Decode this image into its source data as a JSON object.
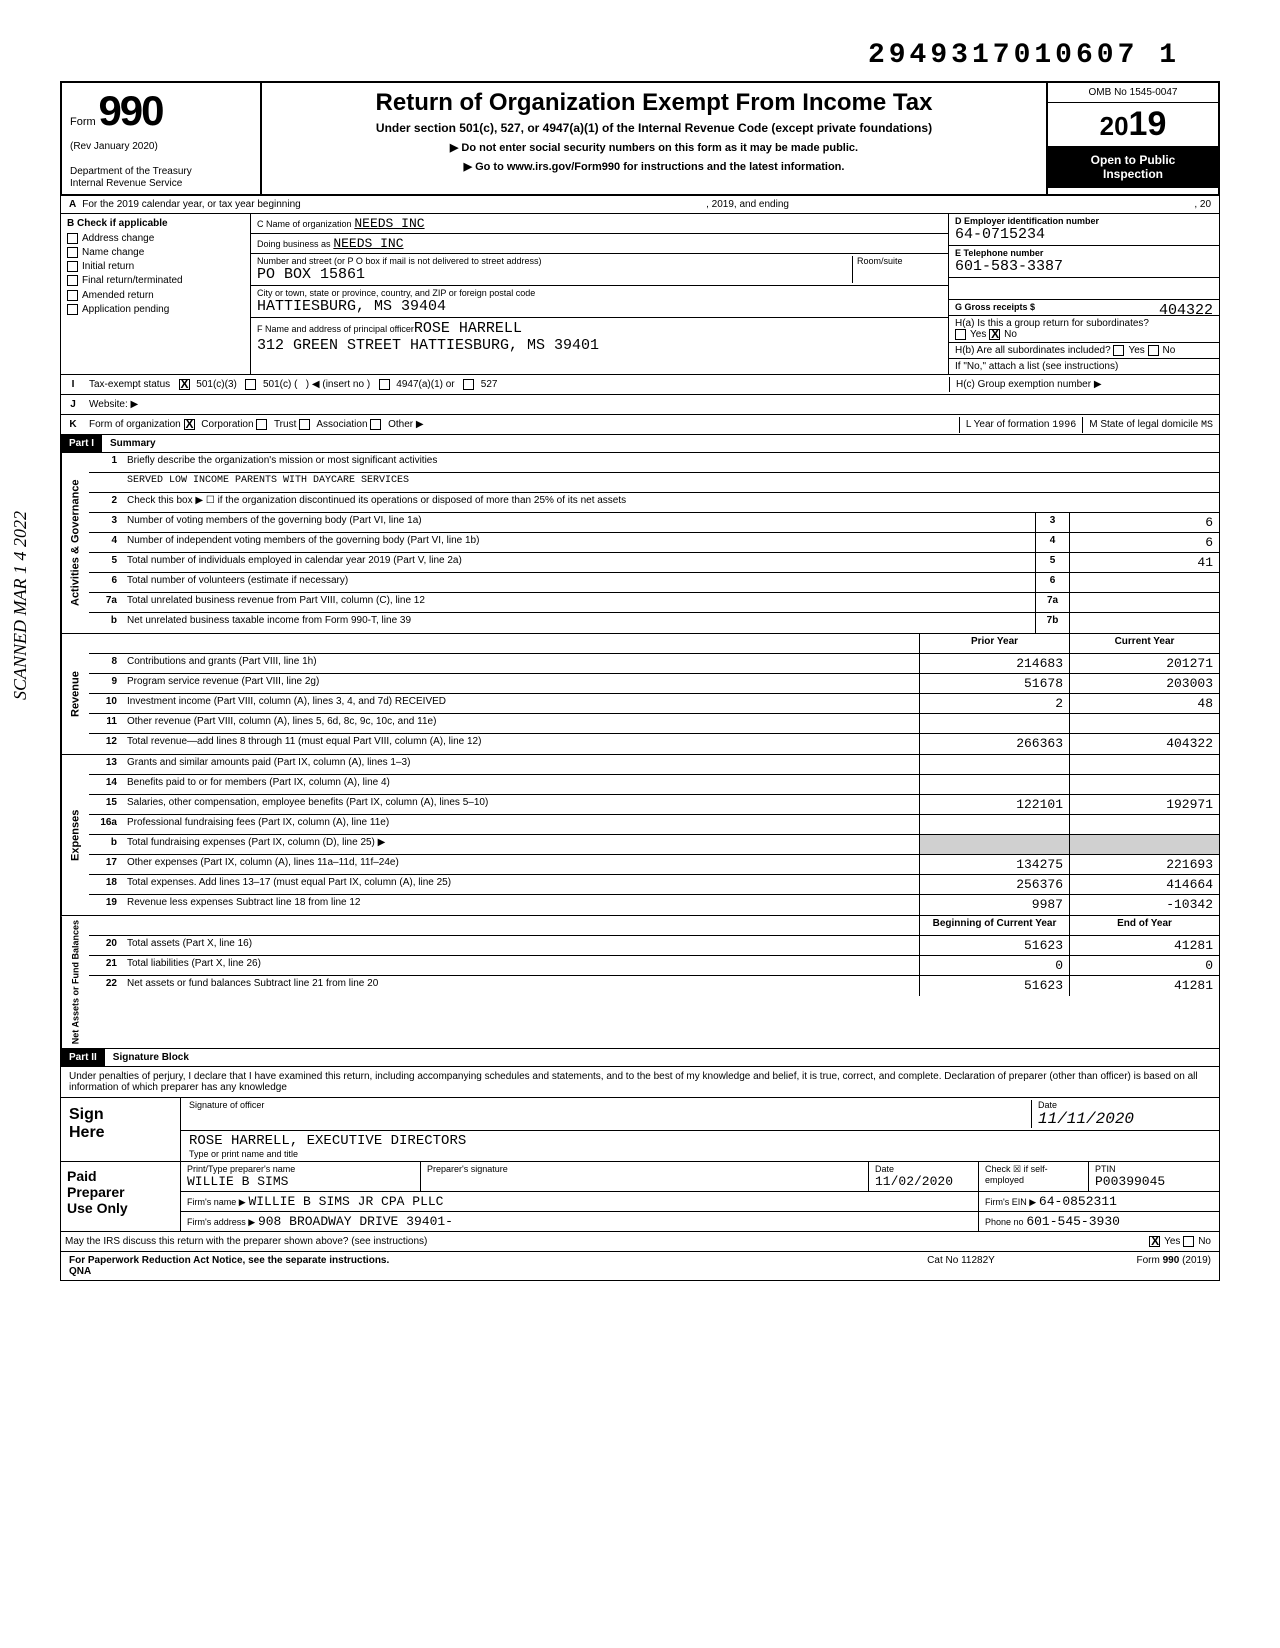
{
  "dln": "2949317010607 1",
  "scanned_stamp": "SCANNED MAR 1 4 2022",
  "form": {
    "number": "990",
    "rev": "(Rev January 2020)",
    "dept": "Department of the Treasury\nInternal Revenue Service",
    "title": "Return of Organization Exempt From Income Tax",
    "subtitle": "Under section 501(c), 527, or 4947(a)(1) of the Internal Revenue Code (except private foundations)",
    "sub2a": "▶ Do not enter social security numbers on this form as it may be made public.",
    "sub2b": "▶ Go to www.irs.gov/Form990 for instructions and the latest information.",
    "omb": "OMB No 1545-0047",
    "year_prefix": "20",
    "year_big": "19",
    "open": "Open to Public Inspection"
  },
  "rowA": {
    "label": "A",
    "text": "For the 2019 calendar year, or tax year beginning",
    "mid": ", 2019, and ending",
    "end": ", 20"
  },
  "B": {
    "header": "B  Check if applicable",
    "items": [
      "Address change",
      "Name change",
      "Initial return",
      "Final return/terminated",
      "Amended return",
      "Application pending"
    ]
  },
  "C": {
    "name_lbl": "C Name of organization",
    "name": "NEEDS INC",
    "dba_lbl": "Doing business as",
    "dba": "NEEDS INC",
    "addr_lbl": "Number and street (or P O box if mail is not delivered to street address)",
    "room_lbl": "Room/suite",
    "addr": "PO BOX 15861",
    "city_lbl": "City or town, state or province, country, and ZIP or foreign postal code",
    "city": "HATTIESBURG, MS 39404",
    "F_lbl": "F Name and address of principal officer",
    "F_name": "ROSE HARRELL",
    "F_addr": "312 GREEN STREET HATTIESBURG, MS 39401"
  },
  "D": {
    "lbl": "D Employer identification number",
    "val": "64-0715234"
  },
  "E": {
    "lbl": "E Telephone number",
    "val": "601-583-3387"
  },
  "G": {
    "lbl": "G Gross receipts $",
    "val": "404322"
  },
  "H": {
    "a": "H(a) Is this a group return for subordinates?",
    "a_yes": "Yes",
    "a_no": "No",
    "b": "H(b) Are all subordinates included?",
    "b_note": "If \"No,\" attach a list (see instructions)",
    "c": "H(c) Group exemption number ▶"
  },
  "I": {
    "lbl": "Tax-exempt status",
    "opt1": "501(c)(3)",
    "opt2": "501(c) (",
    "opt2b": ") ◀ (insert no )",
    "opt3": "4947(a)(1) or",
    "opt4": "527"
  },
  "J": {
    "lbl": "Website: ▶"
  },
  "K": {
    "lbl": "Form of organization",
    "opts": [
      "Corporation",
      "Trust",
      "Association",
      "Other ▶"
    ],
    "L": "L Year of formation",
    "Lval": "1996",
    "M": "M State of legal domicile",
    "Mval": "MS"
  },
  "partI": {
    "hdr": "Part I",
    "title": "Summary"
  },
  "gov": {
    "side": "Activities & Governance",
    "lines": [
      {
        "n": "1",
        "d": "Briefly describe the organization's mission or most significant activities"
      },
      {
        "n": "",
        "d": "SERVED LOW INCOME PARENTS WITH DAYCARE SERVICES",
        "mono": true
      },
      {
        "n": "2",
        "d": "Check this box ▶ ☐ if the organization discontinued its operations or disposed of more than 25% of its net assets"
      },
      {
        "n": "3",
        "d": "Number of voting members of the governing body (Part VI, line 1a)",
        "box": "3",
        "v": "6"
      },
      {
        "n": "4",
        "d": "Number of independent voting members of the governing body (Part VI, line 1b)",
        "box": "4",
        "v": "6"
      },
      {
        "n": "5",
        "d": "Total number of individuals employed in calendar year 2019 (Part V, line 2a)",
        "box": "5",
        "v": "41"
      },
      {
        "n": "6",
        "d": "Total number of volunteers (estimate if necessary)",
        "box": "6",
        "v": ""
      },
      {
        "n": "7a",
        "d": "Total unrelated business revenue from Part VIII, column (C), line 12",
        "box": "7a",
        "v": ""
      },
      {
        "n": "b",
        "d": "Net unrelated business taxable income from Form 990-T, line 39",
        "box": "7b",
        "v": ""
      }
    ]
  },
  "rev": {
    "side": "Revenue",
    "hdr_prior": "Prior Year",
    "hdr_curr": "Current Year",
    "lines": [
      {
        "n": "8",
        "d": "Contributions and grants (Part VIII, line 1h)",
        "p": "214683",
        "c": "201271"
      },
      {
        "n": "9",
        "d": "Program service revenue (Part VIII, line 2g)",
        "p": "51678",
        "c": "203003"
      },
      {
        "n": "10",
        "d": "Investment income (Part VIII, column (A), lines 3, 4, and 7d) RECEIVED",
        "p": "2",
        "c": "48"
      },
      {
        "n": "11",
        "d": "Other revenue (Part VIII, column (A), lines 5, 6d, 8c, 9c, 10c, and 11e)",
        "p": "",
        "c": ""
      },
      {
        "n": "12",
        "d": "Total revenue—add lines 8 through 11 (must equal Part VIII, column (A), line 12)",
        "p": "266363",
        "c": "404322"
      }
    ]
  },
  "exp": {
    "side": "Expenses",
    "lines": [
      {
        "n": "13",
        "d": "Grants and similar amounts paid (Part IX, column (A), lines 1–3)",
        "p": "",
        "c": ""
      },
      {
        "n": "14",
        "d": "Benefits paid to or for members (Part IX, column (A), line 4)",
        "p": "",
        "c": ""
      },
      {
        "n": "15",
        "d": "Salaries, other compensation, employee benefits (Part IX, column (A), lines 5–10)",
        "p": "122101",
        "c": "192971"
      },
      {
        "n": "16a",
        "d": "Professional fundraising fees (Part IX, column (A), line 11e)",
        "p": "",
        "c": ""
      },
      {
        "n": "b",
        "d": "Total fundraising expenses (Part IX, column (D), line 25) ▶",
        "p": "shade",
        "c": "shade"
      },
      {
        "n": "17",
        "d": "Other expenses (Part IX, column (A), lines 11a–11d, 11f–24e)",
        "p": "134275",
        "c": "221693"
      },
      {
        "n": "18",
        "d": "Total expenses. Add lines 13–17 (must equal Part IX, column (A), line 25)",
        "p": "256376",
        "c": "414664"
      },
      {
        "n": "19",
        "d": "Revenue less expenses Subtract line 18 from line 12",
        "p": "9987",
        "c": "-10342"
      }
    ]
  },
  "net": {
    "side": "Net Assets or Fund Balances",
    "hdr_beg": "Beginning of Current Year",
    "hdr_end": "End of Year",
    "lines": [
      {
        "n": "20",
        "d": "Total assets (Part X, line 16)",
        "p": "51623",
        "c": "41281"
      },
      {
        "n": "21",
        "d": "Total liabilities (Part X, line 26)",
        "p": "0",
        "c": "0"
      },
      {
        "n": "22",
        "d": "Net assets or fund balances Subtract line 21 from line 20",
        "p": "51623",
        "c": "41281"
      }
    ]
  },
  "partII": {
    "hdr": "Part II",
    "title": "Signature Block"
  },
  "jurat": "Under penalties of perjury, I declare that I have examined this return, including accompanying schedules and statements, and to the best of my knowledge and belief, it is true, correct, and complete. Declaration of preparer (other than officer) is based on all information of which preparer has any knowledge",
  "sign": {
    "left": "Sign Here",
    "sig_lbl": "Signature of officer",
    "date_lbl": "Date",
    "date": "11/11/2020",
    "name": "ROSE HARRELL, EXECUTIVE DIRECTORS",
    "name_lbl": "Type or print name and title"
  },
  "prep": {
    "left": "Paid Preparer Use Only",
    "name_lbl": "Print/Type preparer's name",
    "name": "WILLIE B SIMS",
    "sig_lbl": "Preparer's signature",
    "date_lbl": "Date",
    "date": "11/02/2020",
    "check_lbl": "Check ☒ if self-employed",
    "ptin_lbl": "PTIN",
    "ptin": "P00399045",
    "firm_lbl": "Firm's name ▶",
    "firm": "WILLIE B SIMS JR CPA PLLC",
    "ein_lbl": "Firm's EIN ▶",
    "ein": "64-0852311",
    "addr_lbl": "Firm's address ▶",
    "addr": "908 BROADWAY DRIVE 39401-",
    "phone_lbl": "Phone no",
    "phone": "601-545-3930"
  },
  "irs_q": "May the IRS discuss this return with the preparer shown above? (see instructions)",
  "foot": {
    "l": "For Paperwork Reduction Act Notice, see the separate instructions.",
    "qna": "QNA",
    "cat": "Cat No 11282Y",
    "form": "Form 990 (2019)"
  }
}
